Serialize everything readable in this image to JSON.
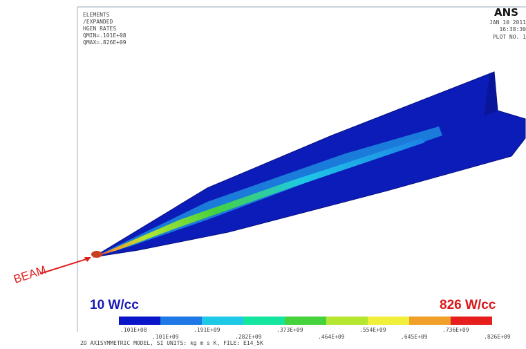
{
  "header": {
    "lines": [
      "ELEMENTS",
      "/EXPANDED",
      "HGEN RATES",
      "QMIN=.101E+08",
      "QMAX=.826E+09"
    ],
    "logo": "ANS",
    "date": "JAN 10 2011",
    "time": "16:38:30",
    "plot": "PLOT NO.  1"
  },
  "annotations": {
    "beam": "BEAM",
    "min": "10 W/cc",
    "max": "826 W/cc"
  },
  "legend": {
    "colors": [
      "#0a14c8",
      "#1e78e6",
      "#1ec8e6",
      "#14e6a0",
      "#46d23c",
      "#b4e632",
      "#f0f03c",
      "#f0a028",
      "#e61e1e"
    ],
    "labels": [
      ".101E+08",
      ".101E+09",
      ".191E+09",
      ".282E+09",
      ".373E+09",
      ".464E+09",
      ".554E+09",
      ".645E+09",
      ".736E+09",
      ".826E+09"
    ]
  },
  "footer": "2D AXISYMMETRIC MODEL, SI UNITS: kg m s K, FILE: E14_5K"
}
